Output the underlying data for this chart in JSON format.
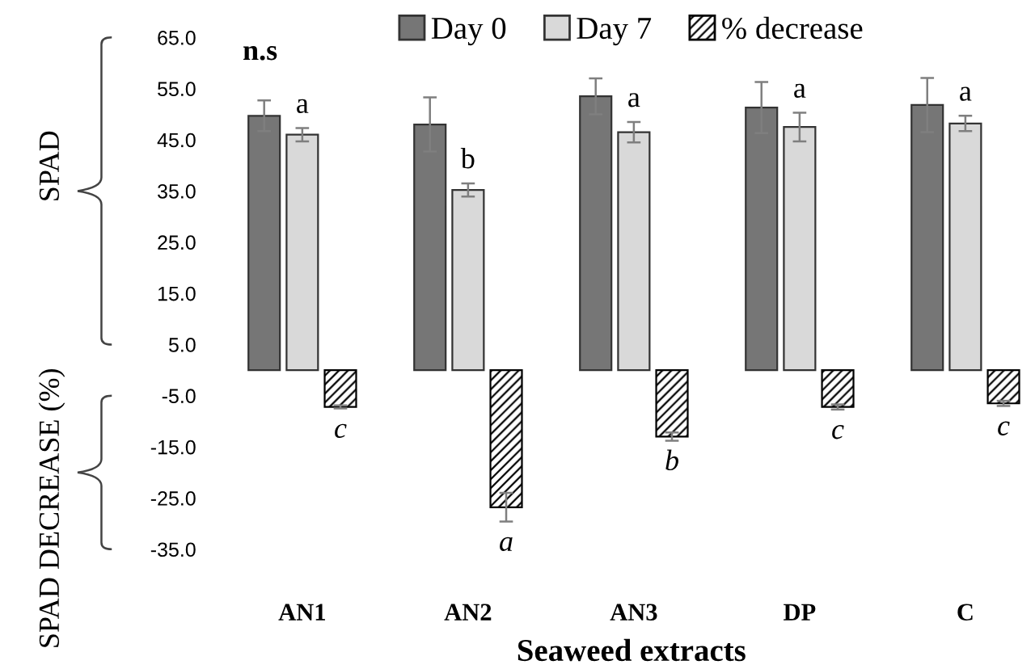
{
  "chart_data": {
    "type": "bar",
    "xlabel": "Seaweed extracts",
    "ylabel": "SPAD",
    "categories": [
      "AN1",
      "AN2",
      "AN3",
      "DP",
      "C"
    ],
    "series": [
      {
        "name": "Day 0",
        "color": "#767676",
        "values": [
          49.7,
          48.0,
          53.5,
          51.3,
          51.8
        ],
        "errors": [
          3.0,
          5.3,
          3.5,
          5.0,
          5.3
        ]
      },
      {
        "name": "Day 7",
        "color": "#d9d9d9",
        "values": [
          46.0,
          35.2,
          46.5,
          47.5,
          48.2
        ],
        "errors": [
          1.3,
          1.3,
          2.0,
          2.8,
          1.5
        ]
      },
      {
        "name": "% decrease",
        "color": "#000000",
        "values": [
          -7.2,
          -26.8,
          -13.0,
          -7.2,
          -6.5
        ],
        "errors": [
          0.3,
          2.8,
          0.8,
          0.5,
          0.5
        ]
      }
    ],
    "ylim": [
      -35,
      65
    ],
    "yticks": [
      {
        "value": 65,
        "label": "65.0"
      },
      {
        "value": 55,
        "label": "55.0"
      },
      {
        "value": 45,
        "label": "45.0"
      },
      {
        "value": 35,
        "label": "35.0"
      },
      {
        "value": 25,
        "label": "25.0"
      },
      {
        "value": 15,
        "label": "15.0"
      },
      {
        "value": 5,
        "label": "5.0"
      },
      {
        "value": -5,
        "label": "-5.0"
      },
      {
        "value": -15,
        "label": "-15.0"
      },
      {
        "value": -25,
        "label": "-25.0"
      },
      {
        "value": -35,
        "label": "-35.0"
      }
    ],
    "annotations": [
      "n.s",
      "SPAD DECREASE (%)",
      "a",
      "b",
      "a",
      "a",
      "a",
      "c",
      "a",
      "b",
      "c",
      "c"
    ],
    "legend": "top",
    "grid": false
  }
}
